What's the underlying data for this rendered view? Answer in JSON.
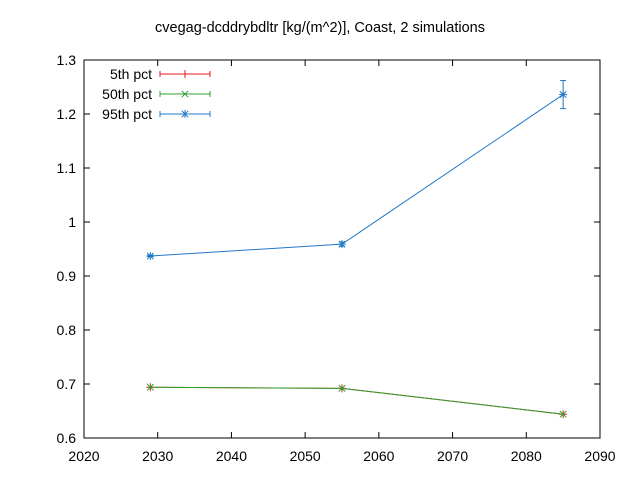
{
  "chart_data": {
    "type": "line",
    "title": "cvegag-dcddrybdltr [kg/(m^2)], Coast, 2 simulations",
    "xlabel": "",
    "ylabel": "",
    "xlim": [
      2020,
      2090
    ],
    "ylim": [
      0.6,
      1.3
    ],
    "x_ticks": [
      "2020",
      "2030",
      "2040",
      "2050",
      "2060",
      "2070",
      "2080",
      "2090"
    ],
    "y_ticks": [
      "0.6",
      "0.7",
      "0.8",
      "0.9",
      "1",
      "1.1",
      "1.2",
      "1.3"
    ],
    "x_tick_values": [
      2020,
      2030,
      2040,
      2050,
      2060,
      2070,
      2080,
      2090
    ],
    "y_tick_values": [
      0.6,
      0.7,
      0.8,
      0.9,
      1.0,
      1.1,
      1.2,
      1.3
    ],
    "grid": false,
    "legend_position": "top-left",
    "series": [
      {
        "name": "5th pct",
        "color": "#e41a1c",
        "marker": "plus",
        "x": [
          2029,
          2055,
          2085
        ],
        "y": [
          0.694,
          0.692,
          0.644
        ],
        "err_low": [
          0.694,
          0.692,
          0.644
        ],
        "err_high": [
          0.694,
          0.692,
          0.644
        ]
      },
      {
        "name": "50th pct",
        "color": "#2ca02c",
        "marker": "x",
        "x": [
          2029,
          2055,
          2085
        ],
        "y": [
          0.694,
          0.692,
          0.644
        ],
        "err_low": [
          0.694,
          0.692,
          0.644
        ],
        "err_high": [
          0.694,
          0.692,
          0.644
        ]
      },
      {
        "name": "95th pct",
        "color": "#1f78c8",
        "marker": "star",
        "x": [
          2029,
          2055,
          2085
        ],
        "y": [
          0.937,
          0.959,
          1.236
        ],
        "err_low": [
          0.936,
          0.955,
          1.21
        ],
        "err_high": [
          0.939,
          0.963,
          1.262
        ]
      }
    ]
  }
}
